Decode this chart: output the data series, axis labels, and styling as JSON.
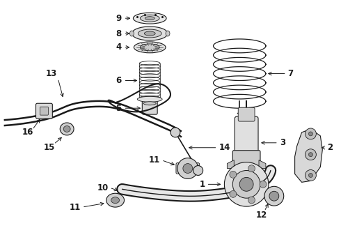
{
  "background_color": "#ffffff",
  "line_color": "#1a1a1a",
  "fig_width": 4.9,
  "fig_height": 3.6,
  "dpi": 100,
  "font_size": 8.5
}
